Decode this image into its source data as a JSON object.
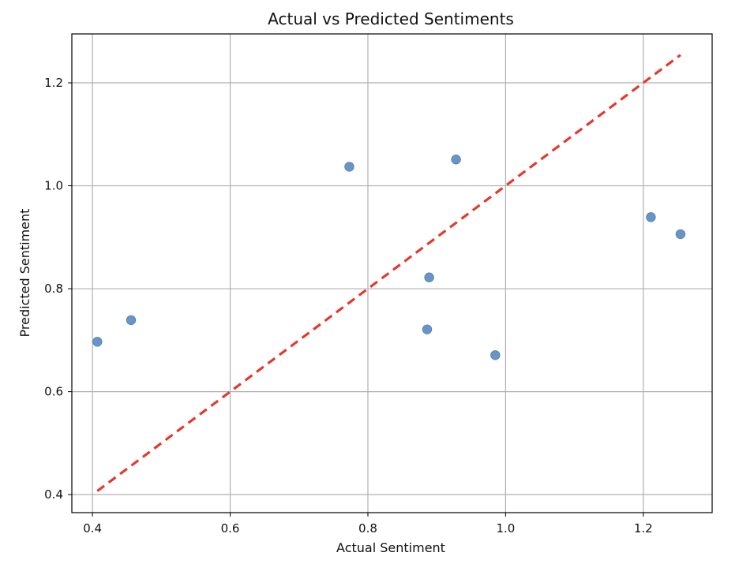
{
  "chart_data": {
    "type": "scatter",
    "title": "Actual vs Predicted Sentiments",
    "xlabel": "Actual Sentiment",
    "ylabel": "Predicted Sentiment",
    "xlim": [
      0.37,
      1.3
    ],
    "ylim": [
      0.365,
      1.295
    ],
    "xticks": [
      0.4,
      0.6,
      0.8,
      1.0,
      1.2
    ],
    "yticks": [
      0.4,
      0.6,
      0.8,
      1.0,
      1.2
    ],
    "xtick_labels": [
      "0.4",
      "0.6",
      "0.8",
      "1.0",
      "1.2"
    ],
    "ytick_labels": [
      "0.4",
      "0.6",
      "0.8",
      "1.0",
      "1.2"
    ],
    "grid": true,
    "points": [
      {
        "x": 0.407,
        "y": 0.697
      },
      {
        "x": 0.456,
        "y": 0.739
      },
      {
        "x": 0.773,
        "y": 1.037
      },
      {
        "x": 0.928,
        "y": 1.051
      },
      {
        "x": 0.889,
        "y": 0.822
      },
      {
        "x": 0.886,
        "y": 0.721
      },
      {
        "x": 0.985,
        "y": 0.671
      },
      {
        "x": 1.211,
        "y": 0.939
      },
      {
        "x": 1.254,
        "y": 0.906
      }
    ],
    "reference_line": {
      "x": [
        0.407,
        1.254
      ],
      "y": [
        0.407,
        1.254
      ],
      "style": "dashed"
    },
    "colors": {
      "points": "#4f81b8",
      "reference_line": "#e23a2e"
    }
  }
}
